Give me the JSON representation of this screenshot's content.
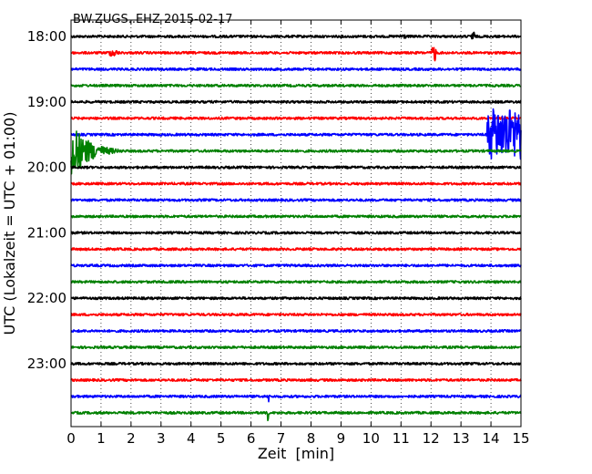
{
  "chart_data": {
    "type": "line",
    "title": "BW.ZUGS..EHZ 2015-02-17",
    "xlabel": "Zeit  [min]",
    "ylabel": "UTC (Lokalzeit = UTC + 01:00)",
    "xlim": [
      0,
      15
    ],
    "x_ticks": [
      "0",
      "1",
      "2",
      "3",
      "4",
      "5",
      "6",
      "7",
      "8",
      "9",
      "10",
      "11",
      "12",
      "13",
      "14",
      "15"
    ],
    "y_ticks": [
      "18:00",
      "19:00",
      "20:00",
      "21:00",
      "22:00",
      "23:00"
    ],
    "trace_minutes": 15,
    "traces_per_hour": 4,
    "grid": "vertical dotted",
    "colors": {
      "cycle": [
        "#000000",
        "#ff0000",
        "#0000ff",
        "#008000"
      ]
    },
    "traces": [
      {
        "start": "18:00",
        "color": "#000000",
        "events": [
          {
            "t": 10.8,
            "amp": 0.15,
            "dur": 0.5
          },
          {
            "t": 13.3,
            "amp": 0.35,
            "dur": 0.2
          }
        ]
      },
      {
        "start": "18:15",
        "color": "#ff0000",
        "events": [
          {
            "t": 1.1,
            "amp": 0.2,
            "dur": 0.6
          },
          {
            "t": 12.0,
            "amp": 0.6,
            "dur": 0.2
          }
        ]
      },
      {
        "start": "18:30",
        "color": "#0000ff",
        "events": []
      },
      {
        "start": "18:45",
        "color": "#008000",
        "events": []
      },
      {
        "start": "19:00",
        "color": "#000000",
        "events": []
      },
      {
        "start": "19:15",
        "color": "#ff0000",
        "events": []
      },
      {
        "start": "19:30",
        "color": "#0000ff",
        "events": [
          {
            "t": 13.85,
            "amp": 1.2,
            "dur": 1.15,
            "sustained": true
          }
        ]
      },
      {
        "start": "19:45",
        "color": "#008000",
        "events": [
          {
            "t": 0.0,
            "amp": 1.4,
            "dur": 1.7,
            "decay": true
          }
        ]
      },
      {
        "start": "20:00",
        "color": "#000000",
        "events": []
      },
      {
        "start": "20:15",
        "color": "#ff0000",
        "events": []
      },
      {
        "start": "20:30",
        "color": "#0000ff",
        "events": []
      },
      {
        "start": "20:45",
        "color": "#008000",
        "events": []
      },
      {
        "start": "21:00",
        "color": "#000000",
        "events": []
      },
      {
        "start": "21:15",
        "color": "#ff0000",
        "events": []
      },
      {
        "start": "21:30",
        "color": "#0000ff",
        "events": []
      },
      {
        "start": "21:45",
        "color": "#008000",
        "events": []
      },
      {
        "start": "22:00",
        "color": "#000000",
        "events": []
      },
      {
        "start": "22:15",
        "color": "#ff0000",
        "events": []
      },
      {
        "start": "22:30",
        "color": "#0000ff",
        "events": []
      },
      {
        "start": "22:45",
        "color": "#008000",
        "events": []
      },
      {
        "start": "23:00",
        "color": "#000000",
        "events": []
      },
      {
        "start": "23:15",
        "color": "#ff0000",
        "events": []
      },
      {
        "start": "23:30",
        "color": "#0000ff",
        "events": [
          {
            "t": 6.55,
            "amp": 0.9,
            "dur": 0.05
          }
        ]
      },
      {
        "start": "23:45",
        "color": "#008000",
        "events": [
          {
            "t": 6.55,
            "amp": 1.6,
            "dur": 0.05
          }
        ]
      }
    ]
  }
}
